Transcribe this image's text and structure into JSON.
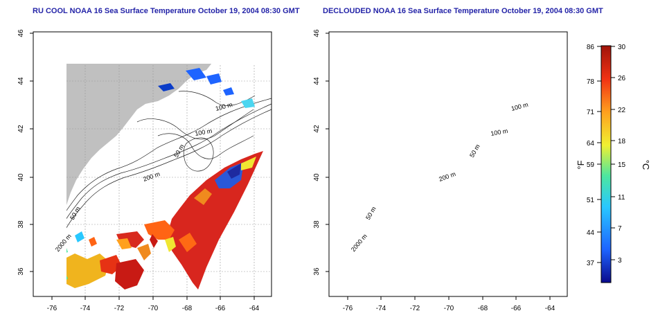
{
  "maps": [
    {
      "title": "RU COOL NOAA 16 Sea Surface Temperature October 19, 2004 08:30 GMT",
      "x_ticks": [
        "-76",
        "-74",
        "-72",
        "-70",
        "-68",
        "-66",
        "-64"
      ],
      "y_ticks": [
        "36",
        "38",
        "40",
        "42",
        "44",
        "46"
      ],
      "contour_labels": [
        "100 m",
        "100 m",
        "50 m",
        "200 m",
        "50 m",
        "2000 m"
      ]
    },
    {
      "title": "DECLOUDED NOAA 16 Sea Surface Temperature October 19, 2004 08:30 GMT",
      "x_ticks": [
        "-76",
        "-74",
        "-72",
        "-70",
        "-68",
        "-66",
        "-64"
      ],
      "y_ticks": [
        "36",
        "38",
        "40",
        "42",
        "44",
        "46"
      ],
      "contour_labels": [
        "100 m",
        "100 m",
        "50 m",
        "200 m",
        "50 m",
        "2000 m"
      ]
    }
  ],
  "colorbar": {
    "f_unit": "°F",
    "c_unit": "°C",
    "f_ticks": [
      "86",
      "78",
      "71",
      "64",
      "59",
      "51",
      "44",
      "37"
    ],
    "c_ticks": [
      "30",
      "26",
      "22",
      "18",
      "15",
      "11",
      "7",
      "3"
    ],
    "range_c": [
      0,
      30
    ],
    "colors": [
      "#0a0a8c",
      "#1e64ff",
      "#28c8ff",
      "#4ce6a0",
      "#f0f032",
      "#ffa01e",
      "#f03214",
      "#a0140a"
    ]
  },
  "colors": {
    "land": "#c0c0c0",
    "ocean": "#ffffff",
    "title": "#2424a8"
  }
}
